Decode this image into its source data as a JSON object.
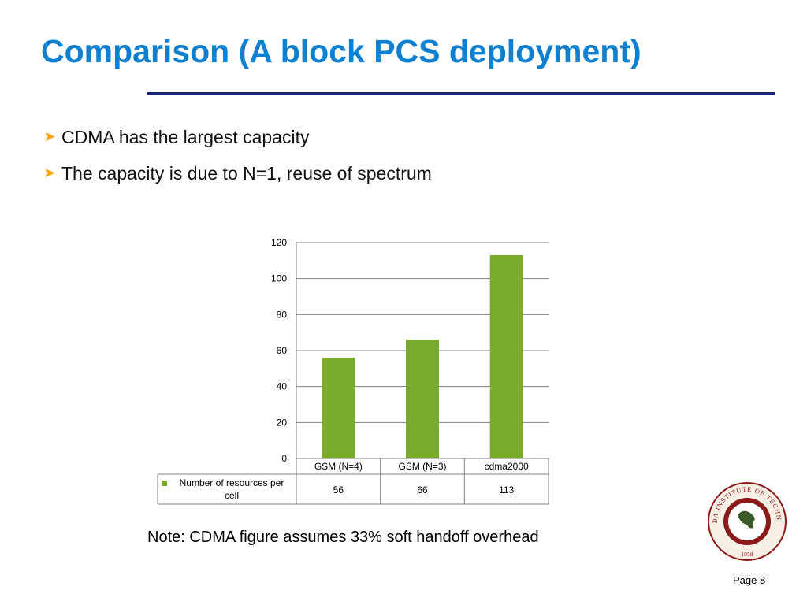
{
  "slide": {
    "title": "Comparison (A block PCS deployment)",
    "bullets": [
      "CDMA has the largest capacity",
      "The capacity is due to N=1, reuse of spectrum"
    ],
    "note": "Note: CDMA figure assumes 33% soft handoff overhead",
    "page": "Page 8",
    "logo_text": "FLORIDA INSTITUTE OF TECHNOLOGY",
    "logo_year": "1958"
  },
  "colors": {
    "title": "#0f7fd0",
    "rule": "#1a237e",
    "bullet_arrow": "#f5a300",
    "bar": "#7bab2b",
    "grid": "#808080",
    "seal_red": "#8b1a1a"
  },
  "chart_data": {
    "type": "bar",
    "categories": [
      "GSM (N=4)",
      "GSM (N=3)",
      "cdma2000"
    ],
    "series": [
      {
        "name": "Number of resources per cell",
        "values": [
          56,
          66,
          113
        ]
      }
    ],
    "yticks": [
      0,
      20,
      40,
      60,
      80,
      100,
      120
    ],
    "ylim": [
      0,
      120
    ],
    "grid": true,
    "data_table": true,
    "legend": "in data table"
  }
}
